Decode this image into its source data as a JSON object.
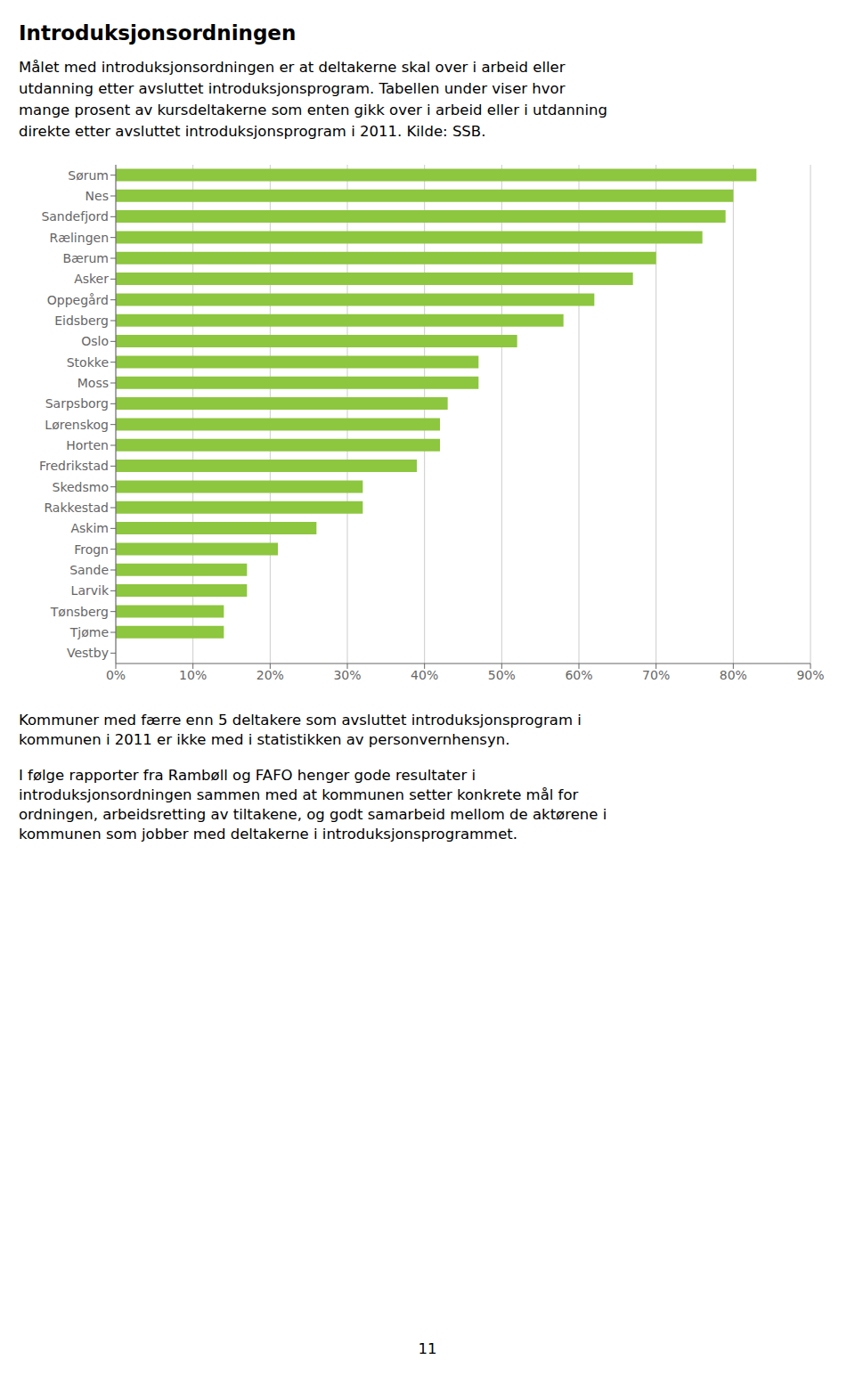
{
  "chart_data": {
    "type": "bar",
    "orientation": "horizontal",
    "title": "Introduksjonsordningen",
    "subtitle": [
      "Målet med introduksjonsordningen er at deltakerne skal over i arbeid eller",
      "utdanning etter avsluttet introduksjonsprogram. Tabellen under viser hvor",
      "mange prosent av kursdeltakerne som enten gikk over i arbeid eller i utdanning",
      "direkte etter avsluttet introduksjonsprogram i 2011. Kilde: SSB."
    ],
    "annotations": [
      [
        "Kommuner med færre enn 5 deltakere som avsluttet introduksjonsprogram i",
        "kommunen i 2011 er ikke med i statistikken av personvernhensyn."
      ],
      [
        "I følge rapporter fra Rambøll og FAFO henger gode resultater i",
        "introduksjonsordningen sammen med at kommunen setter konkrete mål for",
        "ordningen, arbeidsretting av tiltakene, og godt samarbeid mellom de aktørene i",
        "kommunen som jobber med deltakerne i introduksjonsprogrammet."
      ],
      [
        "11"
      ]
    ],
    "categories": [
      "Sørum",
      "Nes",
      "Sandefjord",
      "Rælingen",
      "Bærum",
      "Asker",
      "Oppegård",
      "Eidsberg",
      "Oslo",
      "Stokke",
      "Moss",
      "Sarpsborg",
      "Lørenskog",
      "Horten",
      "Fredrikstad",
      "Skedsmo",
      "Rakkestad",
      "Askim",
      "Frogn",
      "Sande",
      "Larvik",
      "Tønsberg",
      "Tjøme",
      "Vestby"
    ],
    "values": [
      83,
      80,
      79,
      76,
      70,
      67,
      62,
      58,
      52,
      47,
      47,
      43,
      42,
      42,
      39,
      32,
      32,
      26,
      21,
      17,
      17,
      14,
      14,
      0
    ],
    "color": "#8DC63F",
    "xlim": [
      0,
      90
    ],
    "xticks": [
      {
        "value": 0,
        "label": "0%"
      },
      {
        "value": 10,
        "label": "10%"
      },
      {
        "value": 20,
        "label": "20%"
      },
      {
        "value": 30,
        "label": "30%"
      },
      {
        "value": 40,
        "label": "40%"
      },
      {
        "value": 50,
        "label": "50%"
      },
      {
        "value": 60,
        "label": "60%"
      },
      {
        "value": 70,
        "label": "70%"
      },
      {
        "value": 80,
        "label": "80%"
      },
      {
        "value": 90,
        "label": "90%"
      }
    ],
    "grid": true
  }
}
